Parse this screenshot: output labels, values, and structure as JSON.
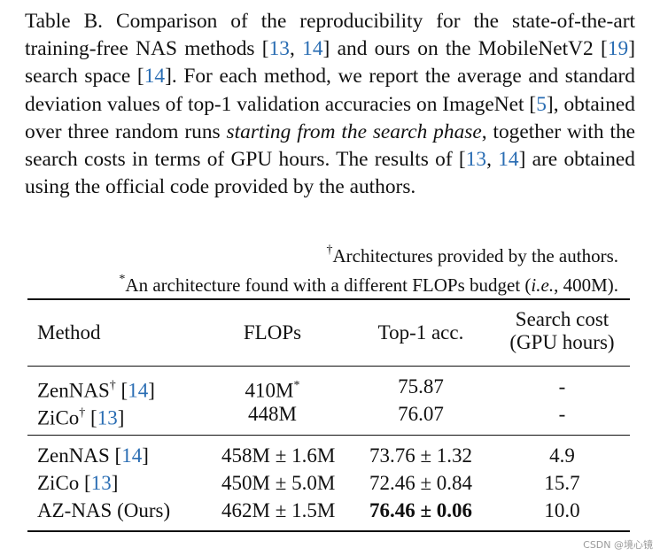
{
  "caption": {
    "p1": "Table B. Comparison of the reproducibility for the state-of-the-art training-free NAS methods [",
    "r1": "13",
    "p2": ", ",
    "r2": "14",
    "p3": "] and ours on the MobileNetV2 [",
    "r3": "19",
    "p4": "] search space [",
    "r4": "14",
    "p5": "]. For each method, we report the average and standard deviation values of top-1 validation accuracies on ImageNet [",
    "r5": "5",
    "p6": "], obtained over three random runs ",
    "em1": "starting from the search phase",
    "p7": ", together with the search costs in terms of GPU hours. The results of [",
    "r6": "13",
    "p8": ", ",
    "r7": "14",
    "p9": "] are obtained using the official code provided by the authors."
  },
  "notes": {
    "dagger_mark": "†",
    "dagger_text": "Architectures provided by the authors.",
    "star_mark": "*",
    "star_pre": "An architecture found with a different FLOPs budget (",
    "star_em": "i.e.",
    "star_post": ", 400M)."
  },
  "table": {
    "headers": {
      "method": "Method",
      "flops": "FLOPs",
      "acc": "Top-1 acc.",
      "cost_line1": "Search cost",
      "cost_line2": "(GPU hours)"
    },
    "rows": [
      {
        "method": "ZenNAS",
        "mark": "†",
        "ref": "14",
        "flops": "410M",
        "flops_mark": "*",
        "acc": "75.87",
        "cost": "-"
      },
      {
        "method": "ZiCo",
        "mark": "†",
        "ref": "13",
        "flops": "448M",
        "flops_mark": "",
        "acc": "76.07",
        "cost": "-"
      },
      {
        "method": "ZenNAS",
        "mark": "",
        "ref": "14",
        "flops": "458M ± 1.6M",
        "flops_mark": "",
        "acc": "73.76 ± 1.32",
        "cost": "4.9"
      },
      {
        "method": "ZiCo",
        "mark": "",
        "ref": "13",
        "flops": "450M ± 5.0M",
        "flops_mark": "",
        "acc": "72.46 ± 0.84",
        "cost": "15.7"
      },
      {
        "method": "AZ-NAS (Ours)",
        "mark": "",
        "ref": "",
        "flops": "462M ± 1.5M",
        "flops_mark": "",
        "acc": "76.46 ± 0.06",
        "cost": "10.0"
      }
    ]
  },
  "watermark": "CSDN @境心镜",
  "colors": {
    "text": "#111111",
    "citation_link": "#2a6db3",
    "watermark": "#9a9a9a"
  }
}
